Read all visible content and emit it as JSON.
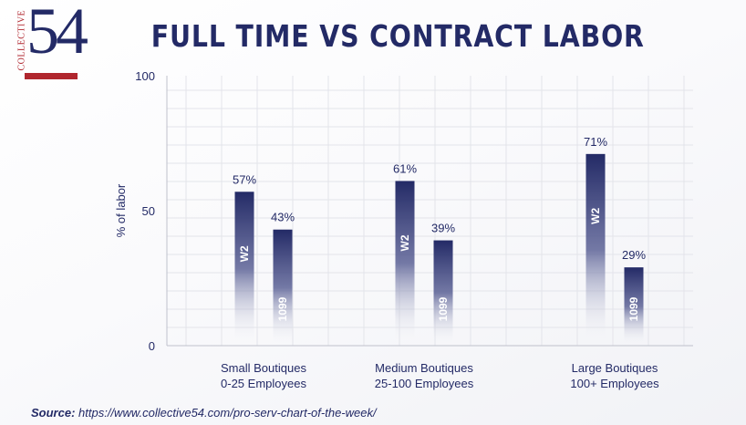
{
  "logo": {
    "vertical_text": "COLLECTIVE",
    "number": "54"
  },
  "source": {
    "label": "Source:",
    "url": "https://www.collective54.com/pro-serv-chart-of-the-week/"
  },
  "colors": {
    "navy": "#232a66",
    "red": "#b0262e"
  },
  "chart_data": {
    "type": "bar",
    "title": "FULL TIME VS CONTRACT LABOR",
    "xlabel": "",
    "ylabel": "% of labor",
    "ylim": [
      0,
      100
    ],
    "yticks": [
      0,
      50,
      100
    ],
    "grid": true,
    "categories": [
      [
        "Small Boutiques",
        "0-25 Employees"
      ],
      [
        "Medium Boutiques",
        "25-100 Employees"
      ],
      [
        "Large Boutiques",
        "100+ Employees"
      ]
    ],
    "series": [
      {
        "name": "W2",
        "values": [
          57,
          61,
          71
        ],
        "labels": [
          "57%",
          "61%",
          "71%"
        ]
      },
      {
        "name": "1099",
        "values": [
          43,
          39,
          29
        ],
        "labels": [
          "43%",
          "39%",
          "29%"
        ]
      }
    ]
  }
}
